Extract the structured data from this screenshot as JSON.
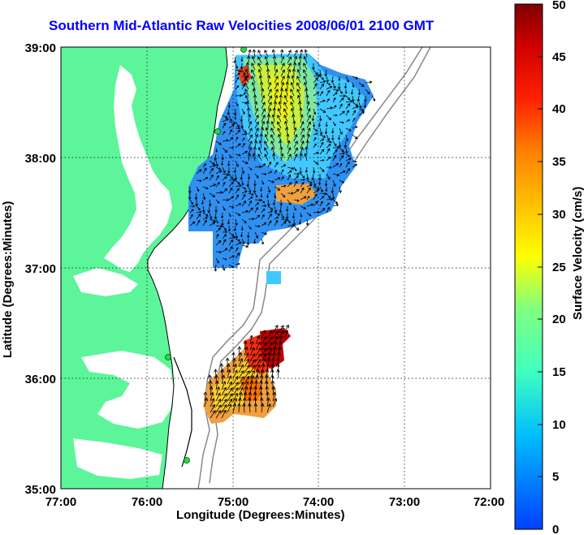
{
  "title": "Southern Mid-Atlantic Raw Velocities 2008/06/01 2100 GMT",
  "map": {
    "xlabel": "Longitude (Degrees:Minutes)",
    "ylabel": "Latitude (Degrees:Minutes)",
    "x_ticks": [
      "77:00",
      "76:00",
      "75:00",
      "74:00",
      "73:00",
      "72:00"
    ],
    "y_ticks": [
      "39:00",
      "38:00",
      "37:00",
      "36:00",
      "35:00"
    ],
    "lon_range": [
      -77,
      -72
    ],
    "lat_range": [
      35,
      39
    ],
    "land_color": "#5cf59a",
    "grid": "dotted"
  },
  "colorbar": {
    "label": "Surface Velocity (cm/s)",
    "ticks": [
      "0",
      "5",
      "10",
      "15",
      "20",
      "25",
      "30",
      "35",
      "40",
      "45",
      "50"
    ],
    "range": [
      0,
      50
    ]
  }
}
